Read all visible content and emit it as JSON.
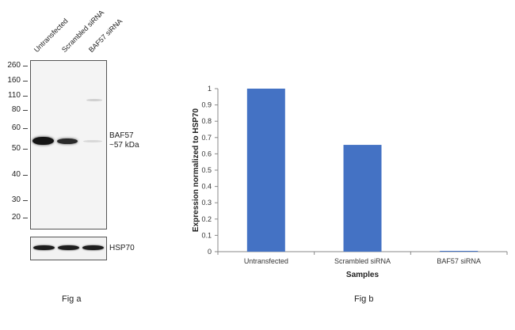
{
  "fig_a": {
    "lane_labels": [
      "Untransfected",
      "Scrambled siRNA",
      "BAF57 siRNA"
    ],
    "mw_markers": [
      "260",
      "160",
      "110",
      "80",
      "60",
      "50",
      "40",
      "30",
      "20"
    ],
    "target_label_line1": "BAF57",
    "target_label_line2": "~57 kDa",
    "loading_control_label": "HSP70",
    "caption": "Fig a"
  },
  "fig_b": {
    "caption": "Fig b"
  },
  "chart_data": {
    "type": "bar",
    "categories": [
      "Untransfected",
      "Scrambled siRNA",
      "BAF57 siRNA"
    ],
    "values": [
      1.0,
      0.655,
      0.003
    ],
    "title": "",
    "xlabel": "Samples",
    "ylabel": "Expression normalized to HSP70",
    "ylim": [
      0,
      1
    ],
    "yticks": [
      "0",
      "0.1",
      "0.2",
      "0.3",
      "0.4",
      "0.5",
      "0.6",
      "0.7",
      "0.8",
      "0.9",
      "1"
    ],
    "bar_color": "#4472c4",
    "grid": false
  }
}
